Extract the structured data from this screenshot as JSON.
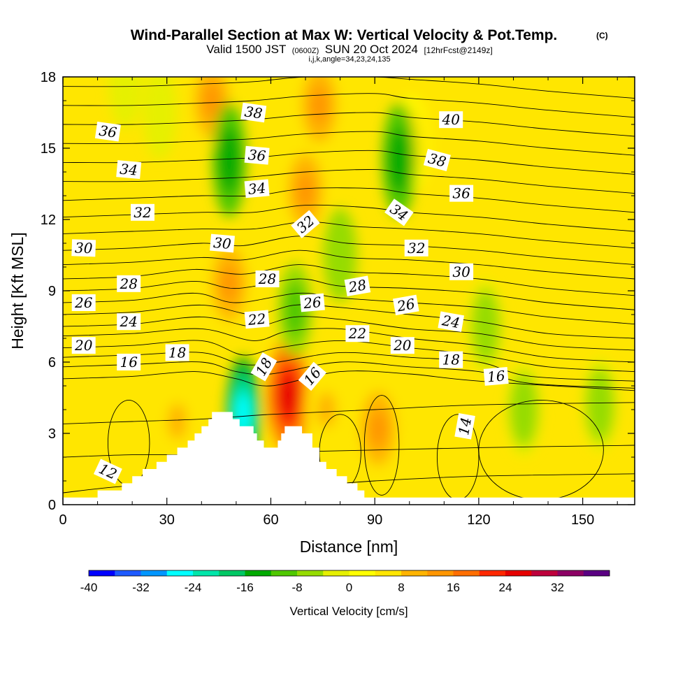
{
  "chart_data": {
    "type": "heatmap",
    "title": "Wind-Parallel Section at Max W: Vertical Velocity & Pot.Temp.",
    "title_mark": "(C)",
    "subtitle": {
      "prefix": "Valid 1500 JST",
      "utc": "(0600Z)",
      "date": "SUN 20 Oct 2024",
      "forecast": "[12hrFcst@2149z]"
    },
    "index_line": "i,j,k,angle=34,23,24,135",
    "xlabel": "Distance [nm]",
    "ylabel": "Height [Kft MSL]",
    "xlim": [
      0,
      165
    ],
    "ylim": [
      0,
      18
    ],
    "x_ticks": [
      "0",
      "30",
      "60",
      "90",
      "120",
      "150"
    ],
    "y_ticks": [
      "0",
      "3",
      "6",
      "9",
      "12",
      "15",
      "18"
    ],
    "colorbar": {
      "label": "Vertical Velocity [cm/s]",
      "tick_labels": [
        "-40",
        "-32",
        "-24",
        "-16",
        "-8",
        "0",
        "8",
        "16",
        "24",
        "32"
      ],
      "levels": [
        -40,
        -36,
        -32,
        -28,
        -24,
        -20,
        -16,
        -12,
        -8,
        -4,
        0,
        4,
        8,
        12,
        16,
        20,
        24,
        28,
        32,
        36
      ],
      "colors": [
        "#0000ff",
        "#1e5aff",
        "#0096ff",
        "#00ffff",
        "#00e6aa",
        "#00c864",
        "#00aa00",
        "#50c800",
        "#96dc00",
        "#e6f000",
        "#ffff00",
        "#ffe600",
        "#ffb400",
        "#ff9600",
        "#ff6e00",
        "#ff2800",
        "#e60000",
        "#be003c",
        "#8c0064",
        "#5a0082"
      ]
    },
    "terrain": [
      [
        0,
        0.3
      ],
      [
        10,
        0.3
      ],
      [
        10,
        0.6
      ],
      [
        17,
        0.6
      ],
      [
        17,
        0.9
      ],
      [
        20,
        0.9
      ],
      [
        20,
        1.2
      ],
      [
        23,
        1.2
      ],
      [
        23,
        1.5
      ],
      [
        27,
        1.5
      ],
      [
        27,
        1.8
      ],
      [
        30,
        1.8
      ],
      [
        30,
        2.1
      ],
      [
        33,
        2.1
      ],
      [
        33,
        2.4
      ],
      [
        36,
        2.4
      ],
      [
        36,
        2.7
      ],
      [
        38,
        2.7
      ],
      [
        38,
        3.0
      ],
      [
        40,
        3.0
      ],
      [
        40,
        3.3
      ],
      [
        42,
        3.3
      ],
      [
        42,
        3.6
      ],
      [
        43,
        3.6
      ],
      [
        43,
        3.9
      ],
      [
        49,
        3.9
      ],
      [
        49,
        3.6
      ],
      [
        51,
        3.6
      ],
      [
        51,
        3.3
      ],
      [
        55,
        3.3
      ],
      [
        55,
        3.0
      ],
      [
        56,
        3.0
      ],
      [
        56,
        2.7
      ],
      [
        58,
        2.7
      ],
      [
        58,
        2.4
      ],
      [
        62,
        2.4
      ],
      [
        62,
        2.7
      ],
      [
        63,
        2.7
      ],
      [
        63,
        3.0
      ],
      [
        64,
        3.0
      ],
      [
        64,
        3.3
      ],
      [
        69,
        3.3
      ],
      [
        69,
        3.0
      ],
      [
        72,
        3.0
      ],
      [
        72,
        2.4
      ],
      [
        74,
        2.4
      ],
      [
        74,
        1.8
      ],
      [
        76,
        1.8
      ],
      [
        76,
        1.5
      ],
      [
        79,
        1.5
      ],
      [
        79,
        1.2
      ],
      [
        82,
        1.2
      ],
      [
        82,
        0.9
      ],
      [
        85,
        0.9
      ],
      [
        85,
        0.6
      ],
      [
        87,
        0.6
      ],
      [
        87,
        0.3
      ],
      [
        165,
        0.3
      ]
    ],
    "updrafts": [
      {
        "x": 65,
        "y": 4.6,
        "w": 26
      },
      {
        "x": 48,
        "y": 9.3,
        "w": 14
      },
      {
        "x": 70,
        "y": 13.2,
        "w": 12
      },
      {
        "x": 74,
        "y": 16.8,
        "w": 14
      },
      {
        "x": 43,
        "y": 17.0,
        "w": 12
      },
      {
        "x": 91,
        "y": 3.2,
        "w": 12
      },
      {
        "x": 76,
        "y": 4.0,
        "w": 9
      },
      {
        "x": 33,
        "y": 3.5,
        "w": 8
      },
      {
        "x": 100,
        "y": 15.2,
        "w": 7
      }
    ],
    "downdrafts": [
      {
        "x": 52,
        "y": 3.8,
        "w": -26
      },
      {
        "x": 48,
        "y": 14.5,
        "w": -16
      },
      {
        "x": 97,
        "y": 14.5,
        "w": -16
      },
      {
        "x": 80,
        "y": 10.5,
        "w": -8
      },
      {
        "x": 67,
        "y": 8.2,
        "w": -10
      },
      {
        "x": 122,
        "y": 7.5,
        "w": -6
      },
      {
        "x": 133,
        "y": 4.0,
        "w": -7
      },
      {
        "x": 155,
        "y": 4.2,
        "w": -6
      },
      {
        "x": 28,
        "y": 16.5,
        "w": -4
      },
      {
        "x": 18,
        "y": 17.8,
        "w": -4
      }
    ],
    "isentropes": [
      {
        "x": [
          0,
          20,
          50,
          70,
          90,
          120,
          165
        ],
        "y": [
          0.5,
          0.8,
          0.9,
          0.8,
          1.0,
          1.2,
          1.3
        ]
      },
      {
        "x": [
          0,
          20,
          40,
          60,
          90,
          120,
          165
        ],
        "y": [
          2.0,
          2.1,
          2.1,
          2.2,
          2.3,
          2.4,
          2.5
        ]
      },
      {
        "x": [
          0,
          20,
          40,
          60,
          90,
          120,
          165
        ],
        "y": [
          3.4,
          3.5,
          3.6,
          3.8,
          4.0,
          4.2,
          4.3
        ]
      },
      {
        "x": [
          0,
          20,
          38,
          50,
          60,
          80,
          100,
          120,
          165
        ],
        "y": [
          5.3,
          5.4,
          5.6,
          5.3,
          5.0,
          5.6,
          5.5,
          5.2,
          4.8
        ]
      },
      {
        "x": [
          0,
          20,
          40,
          50,
          60,
          80,
          100,
          120,
          135,
          165
        ],
        "y": [
          5.8,
          5.9,
          6.0,
          5.6,
          5.5,
          6.0,
          5.8,
          5.6,
          5.1,
          4.9
        ]
      },
      {
        "x": [
          0,
          20,
          40,
          52,
          62,
          80,
          100,
          120,
          135,
          165
        ],
        "y": [
          6.2,
          6.3,
          6.4,
          5.9,
          6.0,
          6.4,
          6.2,
          6.0,
          5.4,
          5.2
        ]
      },
      {
        "x": [
          0,
          20,
          40,
          52,
          62,
          80,
          100,
          120,
          140,
          165
        ],
        "y": [
          6.6,
          6.7,
          6.9,
          6.3,
          6.6,
          6.9,
          6.6,
          6.3,
          5.8,
          5.6
        ]
      },
      {
        "x": [
          0,
          20,
          40,
          55,
          65,
          80,
          100,
          120,
          140,
          165
        ],
        "y": [
          7.1,
          7.2,
          7.4,
          6.9,
          7.3,
          7.4,
          7.0,
          6.7,
          6.2,
          6.0
        ]
      },
      {
        "x": [
          0,
          20,
          40,
          55,
          67,
          80,
          100,
          120,
          140,
          165
        ],
        "y": [
          7.5,
          7.6,
          7.9,
          7.5,
          7.9,
          7.8,
          7.4,
          7.2,
          6.7,
          6.5
        ]
      },
      {
        "x": [
          0,
          20,
          40,
          55,
          67,
          80,
          100,
          120,
          140,
          165
        ],
        "y": [
          8.0,
          8.1,
          8.4,
          8.0,
          8.4,
          8.3,
          8.0,
          7.7,
          7.2,
          7.0
        ]
      },
      {
        "x": [
          0,
          20,
          38,
          50,
          68,
          80,
          100,
          120,
          140,
          165
        ],
        "y": [
          8.5,
          8.6,
          8.9,
          8.5,
          8.9,
          8.7,
          8.5,
          8.3,
          7.9,
          7.6
        ]
      },
      {
        "x": [
          0,
          20,
          38,
          50,
          68,
          80,
          100,
          120,
          140,
          165
        ],
        "y": [
          9.0,
          9.1,
          9.4,
          9.1,
          9.5,
          9.2,
          9.1,
          8.9,
          8.5,
          8.2
        ]
      },
      {
        "x": [
          0,
          20,
          38,
          52,
          68,
          82,
          100,
          120,
          140,
          165
        ],
        "y": [
          9.5,
          9.6,
          9.9,
          9.7,
          10.1,
          9.8,
          9.7,
          9.5,
          9.1,
          8.8
        ]
      },
      {
        "x": [
          0,
          20,
          40,
          52,
          68,
          82,
          100,
          120,
          140,
          165
        ],
        "y": [
          10.1,
          10.2,
          10.4,
          10.3,
          10.7,
          10.4,
          10.3,
          10.1,
          9.8,
          9.5
        ]
      },
      {
        "x": [
          0,
          20,
          40,
          52,
          68,
          82,
          100,
          120,
          140,
          165
        ],
        "y": [
          10.7,
          10.8,
          11.0,
          10.9,
          11.3,
          11.0,
          10.9,
          10.7,
          10.4,
          10.1
        ]
      },
      {
        "x": [
          0,
          20,
          40,
          55,
          70,
          85,
          100,
          120,
          140,
          165
        ],
        "y": [
          11.4,
          11.5,
          11.6,
          11.6,
          11.9,
          11.7,
          11.6,
          11.4,
          11.1,
          10.8
        ]
      },
      {
        "x": [
          0,
          20,
          40,
          55,
          70,
          88,
          100,
          120,
          140,
          165
        ],
        "y": [
          12.1,
          12.2,
          12.3,
          12.3,
          12.6,
          12.5,
          12.3,
          12.1,
          11.8,
          11.5
        ]
      },
      {
        "x": [
          0,
          20,
          40,
          55,
          70,
          90,
          100,
          120,
          140,
          165
        ],
        "y": [
          12.8,
          12.9,
          13.0,
          13.0,
          13.3,
          13.3,
          13.1,
          12.9,
          12.6,
          12.3
        ]
      },
      {
        "x": [
          0,
          20,
          40,
          55,
          70,
          90,
          100,
          120,
          140,
          165
        ],
        "y": [
          13.6,
          13.6,
          13.7,
          13.8,
          14.0,
          14.1,
          13.9,
          13.7,
          13.4,
          13.1
        ]
      },
      {
        "x": [
          0,
          20,
          40,
          55,
          70,
          90,
          100,
          120,
          140,
          165
        ],
        "y": [
          14.4,
          14.4,
          14.5,
          14.6,
          14.8,
          14.9,
          14.7,
          14.5,
          14.2,
          13.9
        ]
      },
      {
        "x": [
          0,
          20,
          40,
          55,
          70,
          90,
          100,
          120,
          140,
          165
        ],
        "y": [
          15.2,
          15.2,
          15.3,
          15.4,
          15.6,
          15.7,
          15.5,
          15.3,
          15.0,
          14.7
        ]
      },
      {
        "x": [
          0,
          20,
          40,
          55,
          70,
          90,
          100,
          120,
          140,
          165
        ],
        "y": [
          16.0,
          16.0,
          16.1,
          16.2,
          16.4,
          16.5,
          16.3,
          16.1,
          15.8,
          15.5
        ]
      },
      {
        "x": [
          0,
          20,
          40,
          55,
          70,
          90,
          100,
          120,
          140,
          165
        ],
        "y": [
          16.8,
          16.8,
          16.9,
          17.0,
          17.2,
          17.3,
          17.1,
          16.9,
          16.6,
          16.3
        ]
      },
      {
        "x": [
          0,
          20,
          40,
          55,
          70,
          90,
          100,
          120,
          140,
          165
        ],
        "y": [
          17.6,
          17.6,
          17.7,
          17.8,
          18.0,
          18.0,
          17.9,
          17.7,
          17.4,
          17.1
        ]
      }
    ],
    "closed_contours": [
      {
        "x": 19,
        "y": 2.6,
        "rx": 6,
        "ry": 1.8
      },
      {
        "x": 80,
        "y": 2.2,
        "rx": 6,
        "ry": 1.6
      },
      {
        "x": 92,
        "y": 2.5,
        "rx": 5,
        "ry": 2.1
      },
      {
        "x": 138,
        "y": 2.3,
        "rx": 18,
        "ry": 2.1
      },
      {
        "x": 114,
        "y": 2.0,
        "rx": 6,
        "ry": 1.8
      }
    ],
    "contour_labels": [
      {
        "text": "36",
        "x": 13,
        "y": 15.7,
        "angle": 8
      },
      {
        "text": "34",
        "x": 19,
        "y": 14.1,
        "angle": 5
      },
      {
        "text": "32",
        "x": 23,
        "y": 12.3,
        "angle": 0
      },
      {
        "text": "30",
        "x": 6,
        "y": 10.8,
        "angle": 2
      },
      {
        "text": "28",
        "x": 19,
        "y": 9.3,
        "angle": 0
      },
      {
        "text": "26",
        "x": 6,
        "y": 8.5,
        "angle": 0
      },
      {
        "text": "24",
        "x": 19,
        "y": 7.7,
        "angle": 0
      },
      {
        "text": "20",
        "x": 6,
        "y": 6.7,
        "angle": 0
      },
      {
        "text": "16",
        "x": 19,
        "y": 6.0,
        "angle": 0
      },
      {
        "text": "18",
        "x": 33,
        "y": 6.4,
        "angle": 0
      },
      {
        "text": "38",
        "x": 55,
        "y": 16.5,
        "angle": 8
      },
      {
        "text": "36",
        "x": 56,
        "y": 14.7,
        "angle": 5
      },
      {
        "text": "34",
        "x": 56,
        "y": 13.3,
        "angle": -5
      },
      {
        "text": "30",
        "x": 46,
        "y": 11.0,
        "angle": 5
      },
      {
        "text": "28",
        "x": 59,
        "y": 9.5,
        "angle": 0
      },
      {
        "text": "22",
        "x": 56,
        "y": 7.8,
        "angle": -5
      },
      {
        "text": "18",
        "x": 58,
        "y": 5.8,
        "angle": -60
      },
      {
        "text": "16",
        "x": 72,
        "y": 5.4,
        "angle": -50
      },
      {
        "text": "32",
        "x": 70,
        "y": 11.8,
        "angle": -40
      },
      {
        "text": "26",
        "x": 72,
        "y": 8.5,
        "angle": -5
      },
      {
        "text": "28",
        "x": 85,
        "y": 9.2,
        "angle": -10
      },
      {
        "text": "22",
        "x": 85,
        "y": 7.2,
        "angle": 0
      },
      {
        "text": "20",
        "x": 98,
        "y": 6.7,
        "angle": 0
      },
      {
        "text": "26",
        "x": 99,
        "y": 8.4,
        "angle": -10
      },
      {
        "text": "32",
        "x": 102,
        "y": 10.8,
        "angle": 0
      },
      {
        "text": "34",
        "x": 97,
        "y": 12.3,
        "angle": 35
      },
      {
        "text": "38",
        "x": 108,
        "y": 14.5,
        "angle": 15
      },
      {
        "text": "40",
        "x": 112,
        "y": 16.2,
        "angle": 0
      },
      {
        "text": "36",
        "x": 115,
        "y": 13.1,
        "angle": 0
      },
      {
        "text": "30",
        "x": 115,
        "y": 9.8,
        "angle": 0
      },
      {
        "text": "24",
        "x": 112,
        "y": 7.7,
        "angle": 10
      },
      {
        "text": "18",
        "x": 112,
        "y": 6.1,
        "angle": 0
      },
      {
        "text": "16",
        "x": 125,
        "y": 5.4,
        "angle": -5
      },
      {
        "text": "14",
        "x": 116,
        "y": 3.3,
        "angle": -80
      },
      {
        "text": "12",
        "x": 13,
        "y": 1.4,
        "angle": 25
      }
    ]
  }
}
